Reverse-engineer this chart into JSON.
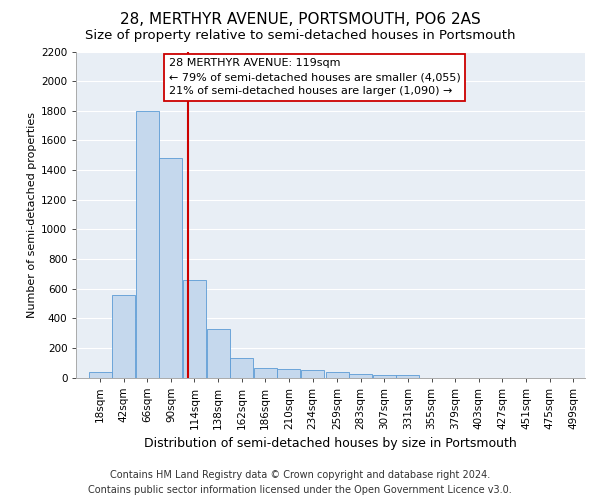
{
  "title": "28, MERTHYR AVENUE, PORTSMOUTH, PO6 2AS",
  "subtitle": "Size of property relative to semi-detached houses in Portsmouth",
  "xlabel": "Distribution of semi-detached houses by size in Portsmouth",
  "ylabel": "Number of semi-detached properties",
  "footer_line1": "Contains HM Land Registry data © Crown copyright and database right 2024.",
  "footer_line2": "Contains public sector information licensed under the Open Government Licence v3.0.",
  "annotation_line1": "28 MERTHYR AVENUE: 119sqm",
  "annotation_line2": "← 79% of semi-detached houses are smaller (4,055)",
  "annotation_line3": "21% of semi-detached houses are larger (1,090) →",
  "property_size_x": 119,
  "bar_color": "#c5d8ed",
  "bar_edge_color": "#5b9bd5",
  "marker_line_color": "#cc0000",
  "categories": [
    "18sqm",
    "42sqm",
    "66sqm",
    "90sqm",
    "114sqm",
    "138sqm",
    "162sqm",
    "186sqm",
    "210sqm",
    "234sqm",
    "259sqm",
    "283sqm",
    "307sqm",
    "331sqm",
    "355sqm",
    "379sqm",
    "403sqm",
    "427sqm",
    "451sqm",
    "475sqm",
    "499sqm"
  ],
  "values": [
    40,
    560,
    1800,
    1480,
    660,
    325,
    130,
    65,
    60,
    50,
    35,
    25,
    20,
    15,
    0,
    0,
    0,
    0,
    0,
    0,
    0
  ],
  "bin_starts": [
    18,
    42,
    66,
    90,
    114,
    138,
    162,
    186,
    210,
    234,
    259,
    283,
    307,
    331,
    355,
    379,
    403,
    427,
    451,
    475,
    499
  ],
  "bin_width": 24,
  "ylim": [
    0,
    2200
  ],
  "yticks": [
    0,
    200,
    400,
    600,
    800,
    1000,
    1200,
    1400,
    1600,
    1800,
    2000,
    2200
  ],
  "xlim_min": 6,
  "xlim_max": 523,
  "background_color": "#e8eef5",
  "grid_color": "#ffffff",
  "title_fontsize": 11,
  "subtitle_fontsize": 9.5,
  "annotation_fontsize": 8,
  "ylabel_fontsize": 8,
  "xlabel_fontsize": 9,
  "tick_fontsize": 7.5,
  "footer_fontsize": 7
}
